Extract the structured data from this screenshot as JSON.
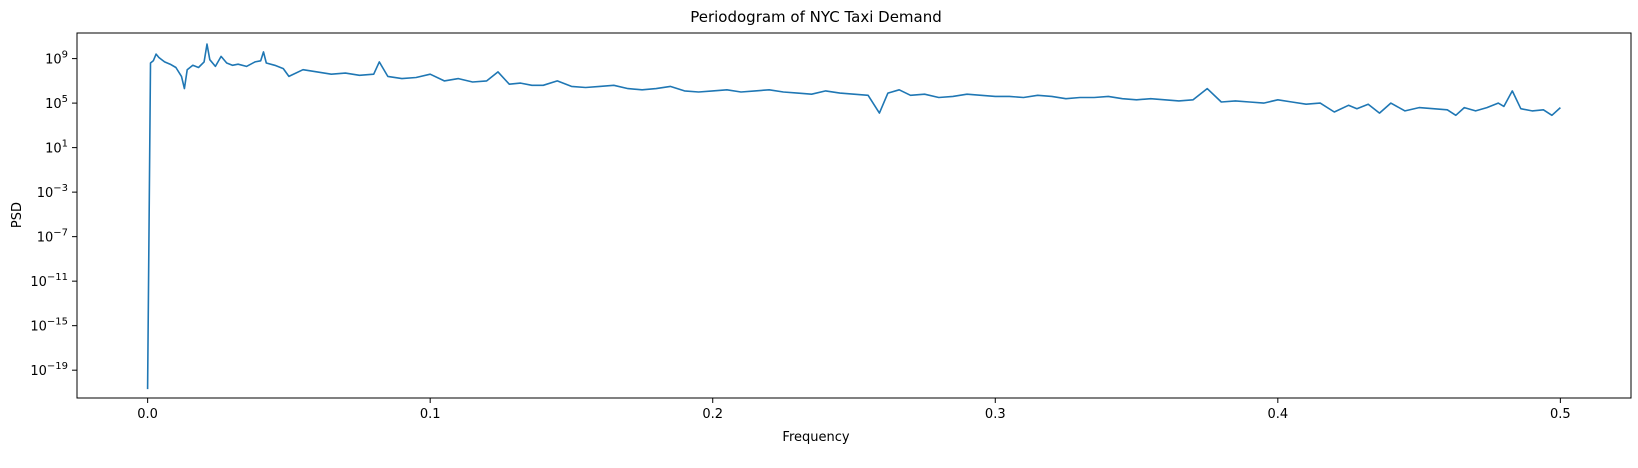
{
  "chart_data": {
    "type": "line",
    "title": "Periodogram of NYC Taxi Demand",
    "xlabel": "Frequency",
    "ylabel": "PSD",
    "xlim": [
      -0.025,
      0.525
    ],
    "ylim_log10": [
      -21.5,
      11.3
    ],
    "yscale": "log",
    "grid": false,
    "x_ticks": [
      {
        "value": 0.0,
        "label": "0.0"
      },
      {
        "value": 0.1,
        "label": "0.1"
      },
      {
        "value": 0.2,
        "label": "0.2"
      },
      {
        "value": 0.3,
        "label": "0.3"
      },
      {
        "value": 0.4,
        "label": "0.4"
      },
      {
        "value": 0.5,
        "label": "0.5"
      }
    ],
    "y_ticks": [
      {
        "exp": 9,
        "label": "9"
      },
      {
        "exp": 5,
        "label": "5"
      },
      {
        "exp": 1,
        "label": "1"
      },
      {
        "exp": -3,
        "label": "−3"
      },
      {
        "exp": -7,
        "label": "−7"
      },
      {
        "exp": -11,
        "label": "−11"
      },
      {
        "exp": -15,
        "label": "−15"
      },
      {
        "exp": -19,
        "label": "−19"
      }
    ],
    "y_tick_base": "10",
    "series": [
      {
        "color": "#1f77b4",
        "x": [
          0.0,
          0.001,
          0.002,
          0.003,
          0.004,
          0.005,
          0.006,
          0.008,
          0.01,
          0.012,
          0.013,
          0.014,
          0.016,
          0.018,
          0.02,
          0.021,
          0.022,
          0.024,
          0.026,
          0.028,
          0.03,
          0.032,
          0.035,
          0.038,
          0.04,
          0.041,
          0.042,
          0.045,
          0.048,
          0.05,
          0.055,
          0.06,
          0.065,
          0.07,
          0.075,
          0.08,
          0.082,
          0.085,
          0.09,
          0.095,
          0.1,
          0.105,
          0.11,
          0.115,
          0.12,
          0.124,
          0.128,
          0.132,
          0.136,
          0.14,
          0.145,
          0.15,
          0.155,
          0.16,
          0.165,
          0.17,
          0.175,
          0.18,
          0.185,
          0.19,
          0.195,
          0.2,
          0.205,
          0.21,
          0.215,
          0.22,
          0.225,
          0.23,
          0.235,
          0.24,
          0.245,
          0.25,
          0.255,
          0.259,
          0.262,
          0.266,
          0.27,
          0.275,
          0.28,
          0.285,
          0.29,
          0.295,
          0.3,
          0.305,
          0.31,
          0.315,
          0.32,
          0.325,
          0.33,
          0.335,
          0.34,
          0.345,
          0.35,
          0.355,
          0.36,
          0.365,
          0.37,
          0.375,
          0.38,
          0.385,
          0.39,
          0.395,
          0.4,
          0.405,
          0.41,
          0.415,
          0.42,
          0.425,
          0.428,
          0.432,
          0.436,
          0.44,
          0.445,
          0.45,
          0.455,
          0.46,
          0.463,
          0.466,
          0.47,
          0.474,
          0.478,
          0.48,
          0.483,
          0.486,
          0.49,
          0.494,
          0.497,
          0.5
        ],
        "log10_y": [
          -20.7,
          8.6,
          8.8,
          9.4,
          9.1,
          8.9,
          8.7,
          8.5,
          8.2,
          7.4,
          6.3,
          8.0,
          8.4,
          8.2,
          8.7,
          10.3,
          8.9,
          8.3,
          9.2,
          8.6,
          8.4,
          8.5,
          8.3,
          8.7,
          8.8,
          9.6,
          8.6,
          8.4,
          8.1,
          7.4,
          8.0,
          7.8,
          7.6,
          7.7,
          7.5,
          7.6,
          8.7,
          7.4,
          7.2,
          7.3,
          7.6,
          7.0,
          7.2,
          6.9,
          7.0,
          7.8,
          6.7,
          6.8,
          6.6,
          6.6,
          7.0,
          6.5,
          6.4,
          6.5,
          6.6,
          6.3,
          6.2,
          6.3,
          6.5,
          6.1,
          6.0,
          6.1,
          6.2,
          6.0,
          6.1,
          6.2,
          6.0,
          5.9,
          5.8,
          6.1,
          5.9,
          5.8,
          5.7,
          4.1,
          5.9,
          6.2,
          5.7,
          5.8,
          5.5,
          5.6,
          5.8,
          5.7,
          5.6,
          5.6,
          5.5,
          5.7,
          5.6,
          5.4,
          5.5,
          5.5,
          5.6,
          5.4,
          5.3,
          5.4,
          5.3,
          5.2,
          5.3,
          6.3,
          5.1,
          5.2,
          5.1,
          5.0,
          5.3,
          5.1,
          4.9,
          5.0,
          4.2,
          4.8,
          4.5,
          4.9,
          4.1,
          5.0,
          4.3,
          4.6,
          4.5,
          4.4,
          3.9,
          4.6,
          4.3,
          4.6,
          5.0,
          4.7,
          6.1,
          4.5,
          4.3,
          4.4,
          3.9,
          4.6,
          5.5
        ]
      }
    ]
  }
}
